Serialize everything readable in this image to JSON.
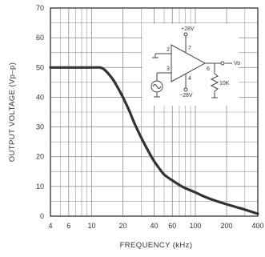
{
  "chart_data": {
    "type": "line",
    "title": "",
    "xlabel": "FREQUENCY (kHz)",
    "ylabel": "OUTPUT VOLTAGE (Vp–p)",
    "x_scale": "log",
    "xlim": [
      4,
      400
    ],
    "ylim": [
      0,
      70
    ],
    "x_ticks": [
      4,
      6,
      10,
      20,
      40,
      60,
      100,
      200,
      400
    ],
    "x_tick_labels": [
      "4",
      "6",
      "10",
      "20",
      "40",
      "60",
      "100",
      "200",
      "400"
    ],
    "y_ticks": [
      0,
      10,
      20,
      30,
      40,
      50,
      60,
      70
    ],
    "y_tick_labels": [
      "0",
      "10",
      "20",
      "30",
      "40",
      "50",
      "60",
      "70"
    ],
    "grid": true,
    "legend": "none",
    "series": [
      {
        "x": [
          4,
          6,
          8,
          10,
          12,
          13,
          14,
          16,
          18,
          20,
          23,
          26,
          30,
          35,
          40,
          45,
          50,
          60,
          70,
          80,
          100,
          120,
          150,
          200,
          250,
          300,
          400
        ],
        "y": [
          50,
          50,
          50,
          50,
          50,
          49.5,
          48.5,
          46,
          43,
          40,
          35.5,
          31,
          26.5,
          22,
          18.5,
          16,
          14,
          12,
          10.5,
          9.4,
          8,
          6.7,
          5.4,
          4,
          3,
          2.2,
          0.8
        ]
      }
    ],
    "schematic": {
      "supply_positive": "+28V",
      "supply_negative": "−28V",
      "pin_labels": [
        "2",
        "3",
        "7",
        "4",
        "6"
      ],
      "load_label": "10K",
      "output_label": "Vo"
    }
  },
  "colors": {
    "curve": "#333333",
    "grid": "#999999",
    "frame": "#333333",
    "text": "#333333"
  }
}
